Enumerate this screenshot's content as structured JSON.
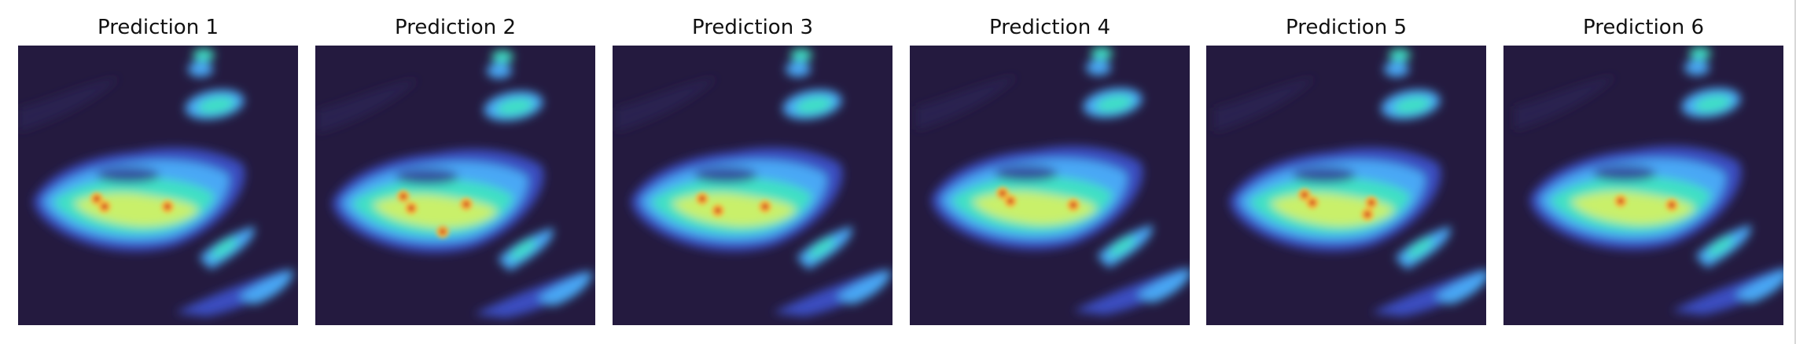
{
  "panels": [
    {
      "title": "Prediction 1"
    },
    {
      "title": "Prediction 2"
    },
    {
      "title": "Prediction 3"
    },
    {
      "title": "Prediction 4"
    },
    {
      "title": "Prediction 5"
    },
    {
      "title": "Prediction 6"
    }
  ],
  "colormap": {
    "background": "#241a3f",
    "low": "#3b4ec0",
    "mid_low": "#4aa8f5",
    "mid": "#3fe0c4",
    "mid_high": "#c9f06a",
    "high": "#f5b63c",
    "peak": "#c8281e"
  }
}
